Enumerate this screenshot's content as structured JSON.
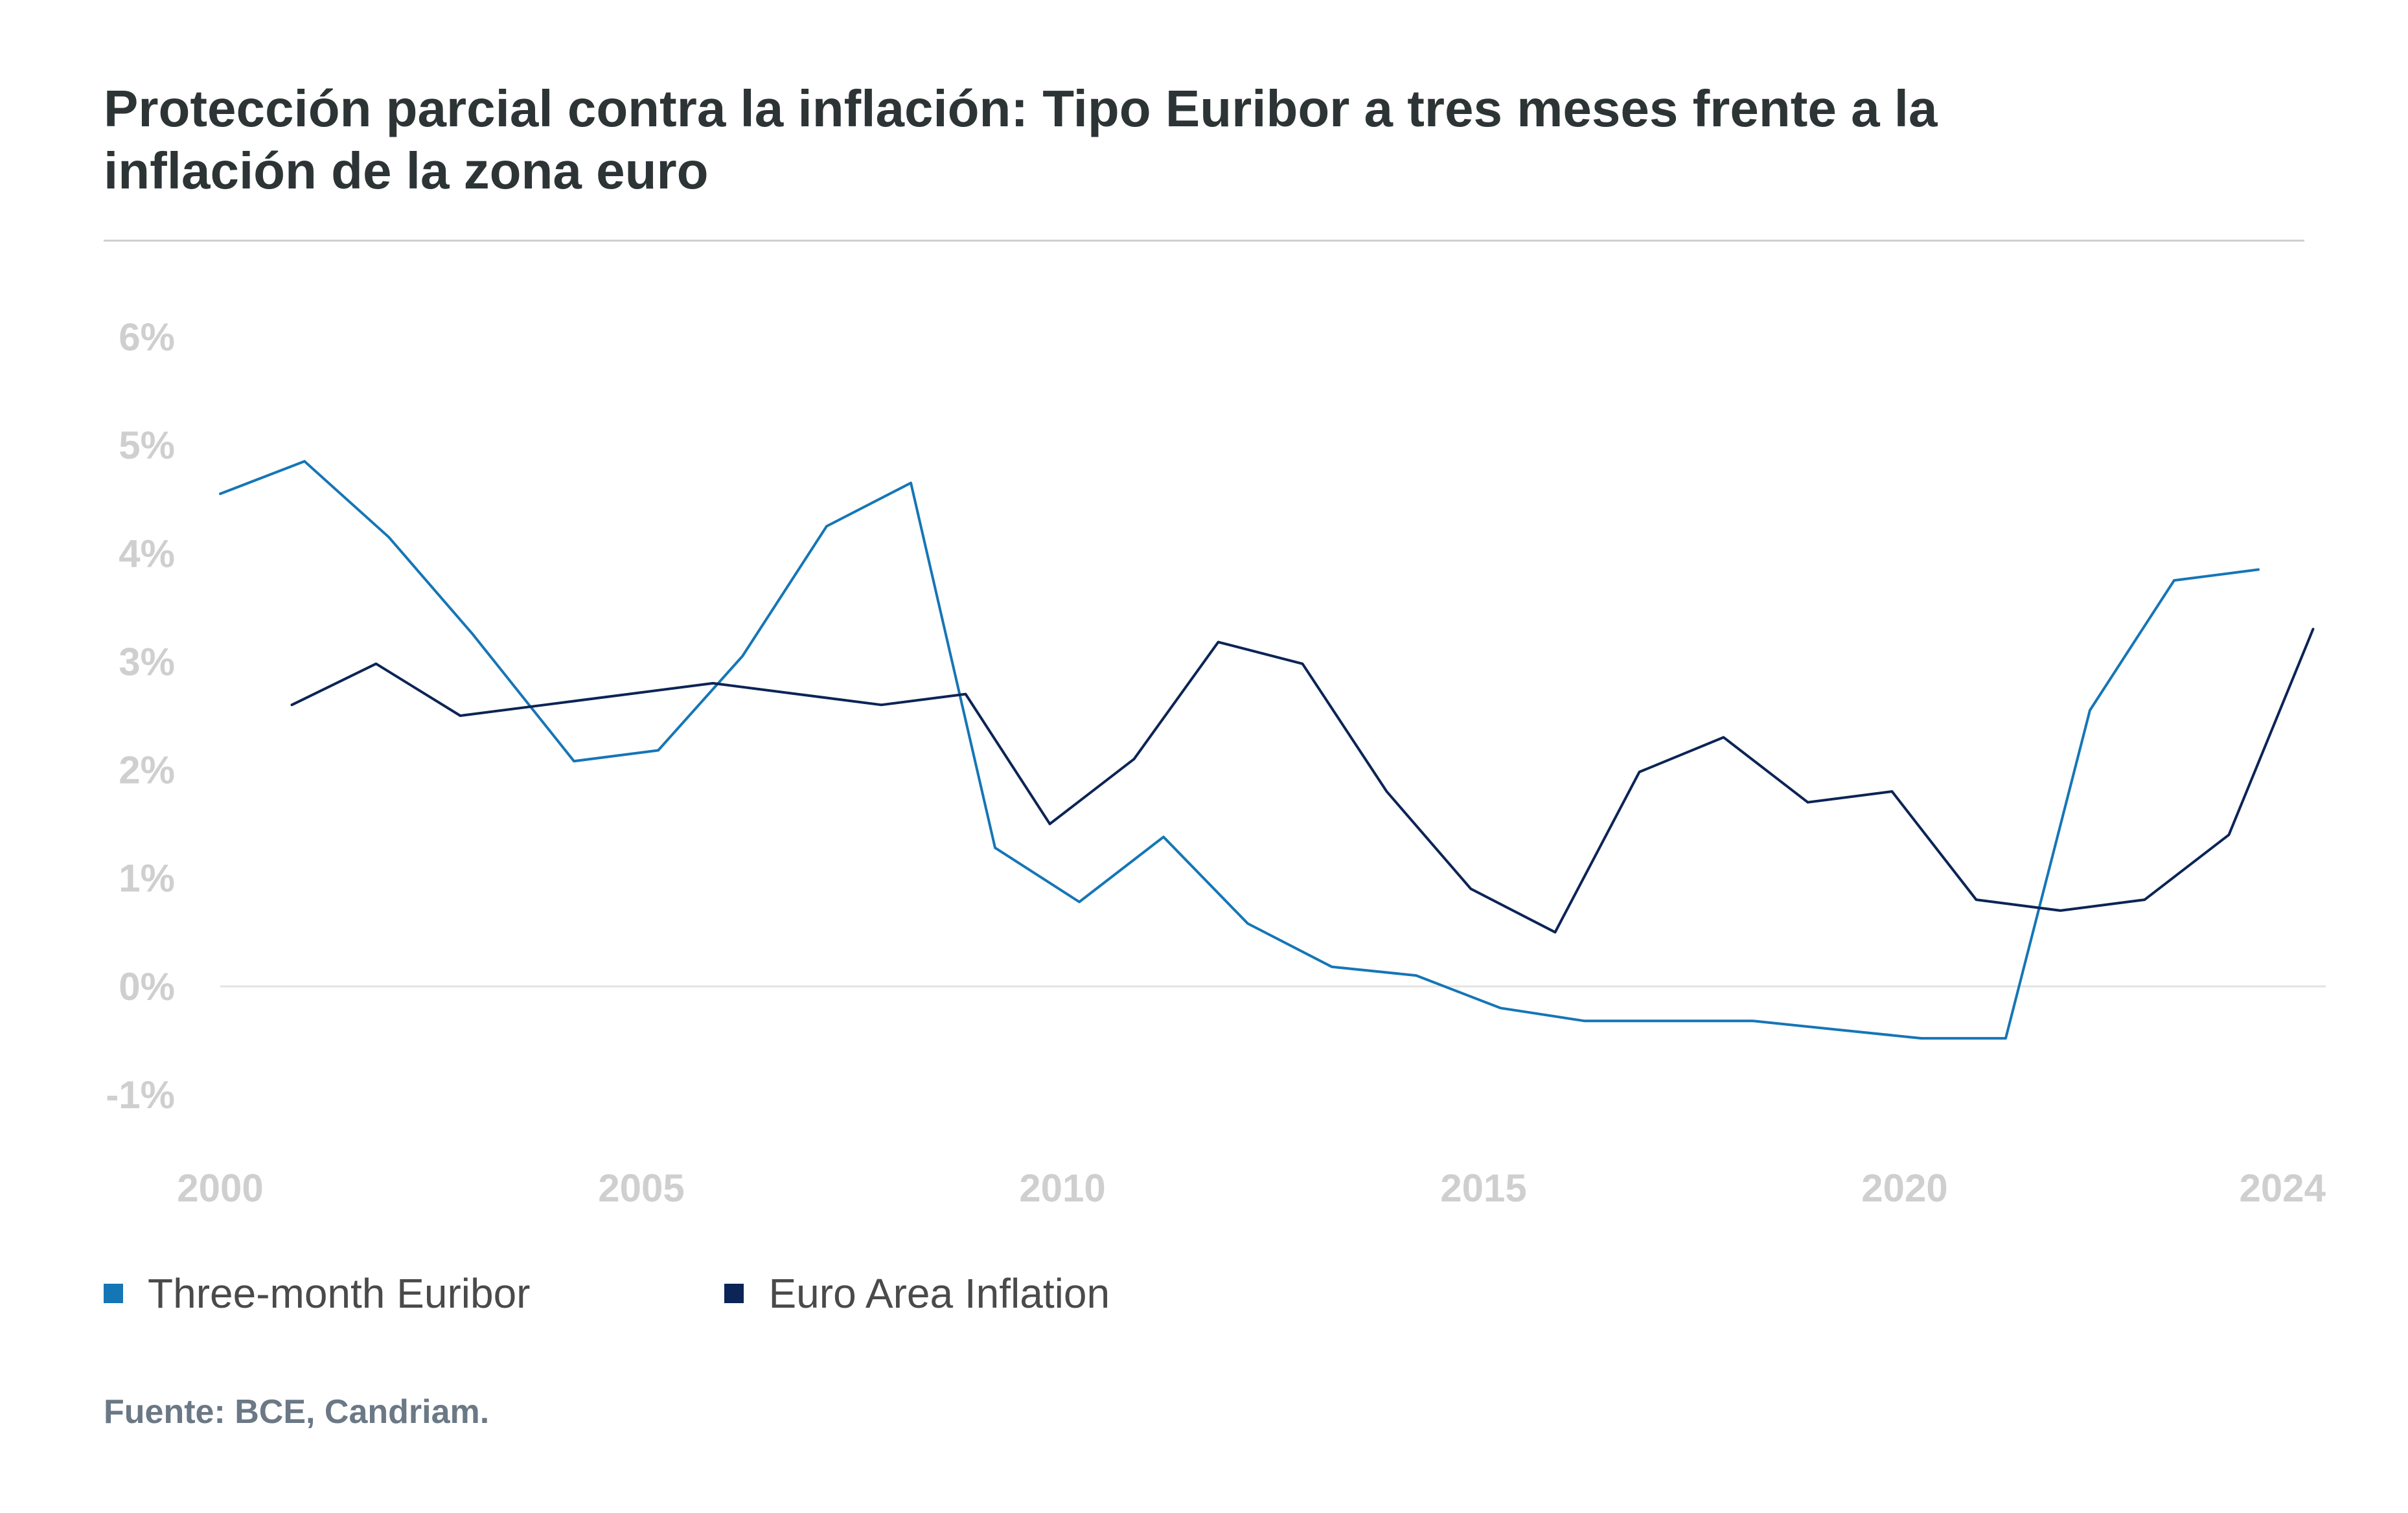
{
  "title": "Protección parcial contra la inflación: Tipo Euribor a tres meses frente a la inflación de la zona euro",
  "legend": [
    {
      "label": "Three-month Euribor",
      "color": "#1576b6"
    },
    {
      "label": "Euro Area Inflation",
      "color": "#0c2456"
    }
  ],
  "source": "Fuente: BCE, Candriam.",
  "chart_data": {
    "type": "line",
    "title": "Protección parcial contra la inflación: Tipo Euribor a tres meses frente a la inflación de la zona euro",
    "xlabel": "",
    "ylabel": "",
    "xlim": [
      2000,
      2025
    ],
    "ylim": [
      -1,
      6
    ],
    "x_ticks": [
      2000,
      2005,
      2010,
      2015,
      2020,
      2024
    ],
    "x_tick_labels": [
      "2000",
      "2005",
      "2010",
      "2015",
      "2020",
      "2024"
    ],
    "y_ticks": [
      6,
      5,
      4,
      3,
      2,
      1,
      0,
      -1
    ],
    "y_tick_labels": [
      "6%",
      "5%",
      "4%",
      "3%",
      "2%",
      "1%",
      "0%",
      "-1%"
    ],
    "zero_line": true,
    "series": [
      {
        "name": "Three-month Euribor",
        "color": "#1576b6",
        "x": [
          2000,
          2001,
          2002,
          2003,
          2004.2,
          2005.2,
          2006.2,
          2007.2,
          2008.2,
          2009.2,
          2010.2,
          2011.2,
          2012.2,
          2013.2,
          2014.2,
          2015.2,
          2016.2,
          2017.2,
          2018.2,
          2019.2,
          2020.2,
          2021.2,
          2022.2,
          2023.2,
          2024.2
        ],
        "values": [
          4.55,
          4.85,
          4.15,
          3.25,
          2.08,
          2.18,
          3.05,
          4.25,
          4.65,
          1.28,
          0.78,
          1.38,
          0.58,
          0.18,
          0.1,
          -0.2,
          -0.32,
          -0.32,
          -0.32,
          -0.4,
          -0.48,
          -0.48,
          2.55,
          3.75,
          3.85
        ]
      },
      {
        "name": "Euro Area Inflation",
        "color": "#0c2456",
        "x": [
          2000.85,
          2001.85,
          2002.85,
          2003.85,
          2004.85,
          2005.85,
          2006.85,
          2007.85,
          2008.85,
          2009.85,
          2010.85,
          2011.85,
          2012.85,
          2013.85,
          2014.85,
          2015.85,
          2016.85,
          2017.85,
          2018.85,
          2019.85,
          2020.85,
          2021.85,
          2022.85,
          2023.85,
          2024.85
        ],
        "values": [
          2.6,
          2.98,
          2.5,
          2.6,
          2.7,
          2.8,
          2.7,
          2.6,
          2.7,
          1.5,
          2.1,
          3.18,
          2.98,
          1.8,
          0.9,
          0.5,
          1.98,
          2.3,
          1.7,
          1.8,
          0.8,
          0.7,
          0.8,
          1.4,
          3.3
        ]
      }
    ]
  }
}
